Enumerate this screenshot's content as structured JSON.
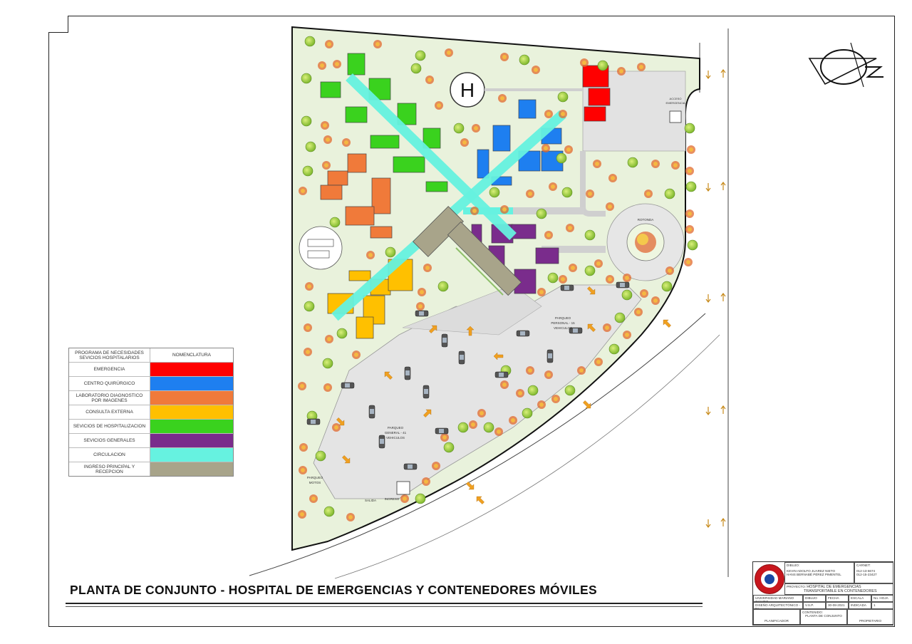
{
  "helipad_letter": "H",
  "plan_title": "PLANTA DE CONJUNTO - HOSPITAL DE EMERGENCIAS Y CONTENEDORES MÓVILES",
  "legend": {
    "header_left": "PROGRAMA DE NECESIDADES SEVICIOS HOSPITALARIOS",
    "header_right": "NOMENCLATURA",
    "items": [
      {
        "label": "EMERGENCIA",
        "color": "#ff0000"
      },
      {
        "label": "CENTRO QUIRÚRGICO",
        "color": "#1e7ff0"
      },
      {
        "label": "LABORATORIO DIAGNOSTICO POR IMAGENES",
        "color": "#f07a3a"
      },
      {
        "label": "CONSULTA EXTERNA",
        "color": "#ffc000"
      },
      {
        "label": "SEVICIOS DE HOSPITALIZACION",
        "color": "#3ad21e"
      },
      {
        "label": "SEVICIOS GENERALES",
        "color": "#7a2c8c"
      },
      {
        "label": "CIRCULACION",
        "color": "#66f2e0"
      },
      {
        "label": "INGRESO PRINCIPAL Y RECEPCION",
        "color": "#a8a48a"
      }
    ]
  },
  "site_labels": {
    "rotonda": "ROTONDA",
    "parking_staff_1": "PARQUEO",
    "parking_staff_2": "PERSONAL - 15",
    "parking_staff_3": "VEHICULOS",
    "parking_general_1": "PARQUEO",
    "parking_general_2": "GENERAL - 41",
    "parking_general_3": "VEHICULOS",
    "parking_moto_1": "PARQUEO",
    "parking_moto_2": "MOTOS",
    "exit": "SALIDA",
    "entry": "INGRESO",
    "emergency_access_1": "ACCESO",
    "emergency_access_2": "EMERGENCIA"
  },
  "title_block": {
    "drawn_label": "DIBUJO:",
    "drawn_names": [
      "KEVIN ADOLFO JUAREZ NIETO",
      "HANS BERNABÉ PÉREZ PIMENTEL"
    ],
    "carnet_label": "CARNET:",
    "carnets": [
      "012-13-6674",
      "012-15-23427"
    ],
    "project_label": "PROYECTO:",
    "project_lines": [
      "HOSPITAL DE EMERGENCIAS",
      "TRANSPORTABLE EN CONTENEDORES"
    ],
    "university": "UNIVERSIDAD MARIANO GÁLVEZ",
    "course": "DISEÑO ARQUITECTÓNICO - 9A",
    "headers": [
      "DIBUJO",
      "FECHA",
      "ESCALA",
      "No. HOJA"
    ],
    "values": [
      "V.S.P.",
      "30-08-2021",
      "INDICADA",
      "1"
    ],
    "content_label": "CONTENIDO:",
    "content_value": "PLANTA DE CONJUNTO",
    "planificador": "PLANIFICADOR",
    "propietario": "PROPIETARIO"
  }
}
